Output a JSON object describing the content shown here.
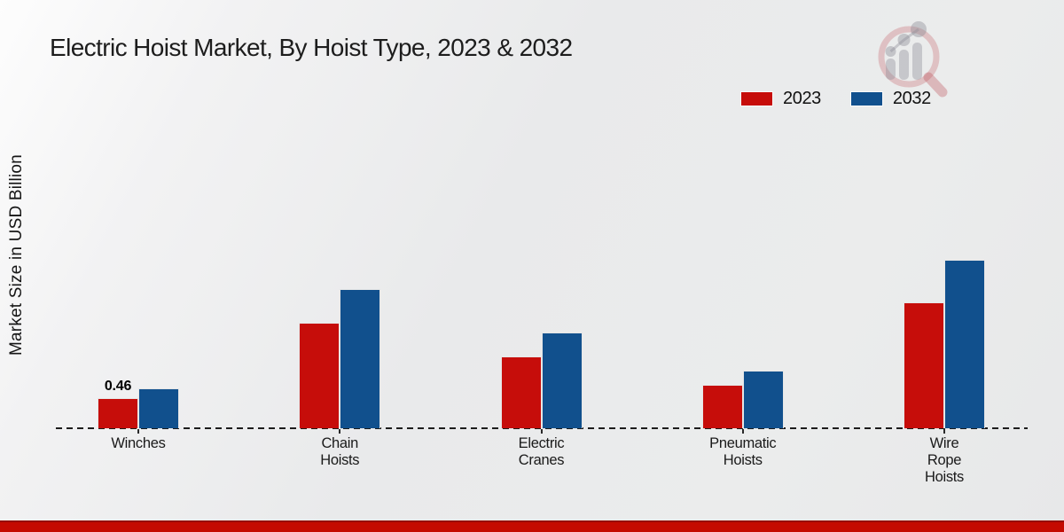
{
  "title": "Electric Hoist Market, By Hoist Type, 2023 & 2032",
  "legend": {
    "items": [
      {
        "label": "2023",
        "color": "#c60d0a"
      },
      {
        "label": "2032",
        "color": "#11508d"
      }
    ]
  },
  "branding": {
    "logo_icon": "magnifier-growth-chart-logo",
    "accent_bar_color": "#c40a01"
  },
  "chart_data": {
    "type": "bar",
    "title": "Electric Hoist Market, By Hoist Type, 2023 & 2032",
    "xlabel": "",
    "ylabel": "Market Size in USD Billion",
    "categories": [
      "Winches",
      "Chain Hoists",
      "Electric Cranes",
      "Pneumatic Hoists",
      "Wire Rope Hoists"
    ],
    "category_label_lines": [
      [
        "Winches"
      ],
      [
        "Chain",
        "Hoists"
      ],
      [
        "Electric",
        "Cranes"
      ],
      [
        "Pneumatic",
        "Hoists"
      ],
      [
        "Wire",
        "Rope",
        "Hoists"
      ]
    ],
    "series": [
      {
        "name": "2023",
        "color": "#c60d0a",
        "values": [
          0.46,
          1.61,
          1.1,
          0.66,
          1.92
        ]
      },
      {
        "name": "2032",
        "color": "#11508d",
        "values": [
          0.61,
          2.12,
          1.46,
          0.88,
          2.57
        ]
      }
    ],
    "data_labels": [
      {
        "category": "Winches",
        "series": "2023",
        "text": "0.46"
      }
    ],
    "ylim": [
      0,
      3
    ],
    "grid": false,
    "baseline_style": "dashed",
    "legend_position": "top-right"
  }
}
